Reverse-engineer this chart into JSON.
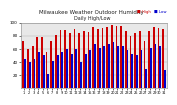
{
  "title": "Milwaukee Weather Outdoor Humidity",
  "subtitle": "Daily High/Low",
  "background_color": "#ffffff",
  "plot_bg_color": "#e8e8e8",
  "high_color": "#cc0000",
  "low_color": "#0000cc",
  "ylim": [
    0,
    100
  ],
  "yticks": [
    20,
    40,
    60,
    80,
    100
  ],
  "ytick_labels": [
    "20",
    "40",
    "60",
    "80",
    "100"
  ],
  "days": [
    "1",
    "2",
    "3",
    "4",
    "5",
    "6",
    "7",
    "8",
    "9",
    "10",
    "11",
    "12",
    "13",
    "14",
    "15",
    "16",
    "17",
    "18",
    "19",
    "20",
    "21",
    "22",
    "23",
    "24",
    "25",
    "26",
    "27",
    "28",
    "29",
    "30",
    "31"
  ],
  "high": [
    72,
    60,
    65,
    78,
    78,
    55,
    72,
    82,
    89,
    89,
    84,
    90,
    84,
    88,
    86,
    93,
    90,
    92,
    93,
    96,
    95,
    95,
    88,
    80,
    85,
    88,
    72,
    88,
    94,
    92,
    90
  ],
  "low": [
    45,
    40,
    44,
    55,
    50,
    22,
    42,
    50,
    55,
    60,
    52,
    60,
    40,
    52,
    58,
    68,
    62,
    65,
    68,
    70,
    65,
    65,
    58,
    52,
    50,
    58,
    30,
    62,
    68,
    65,
    28
  ],
  "legend_high_label": "High",
  "legend_low_label": "Low",
  "title_fontsize": 4.0,
  "subtitle_fontsize": 3.5,
  "tick_fontsize": 3.0,
  "bar_width": 0.38
}
